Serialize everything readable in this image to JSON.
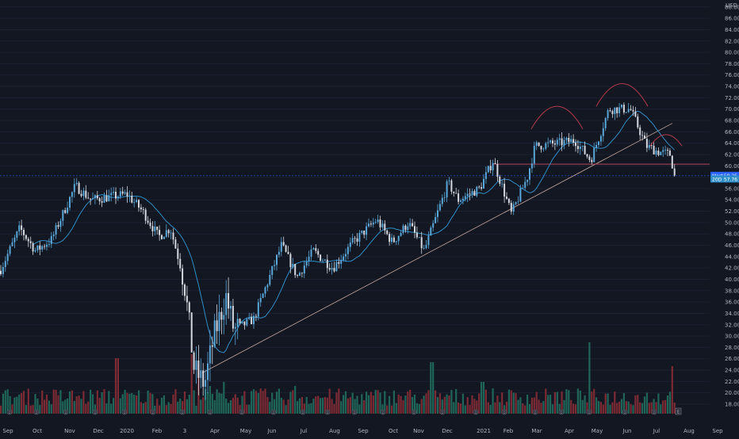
{
  "chart_data": {
    "type": "candlestick",
    "currency": "USD",
    "ylim": [
      16,
      89
    ],
    "y_ticks": [
      18,
      20,
      22,
      24,
      26,
      28,
      30,
      32,
      34,
      36,
      38,
      40,
      42,
      44,
      46,
      48,
      50,
      52,
      54,
      56,
      58,
      60,
      62,
      64,
      66,
      68,
      70,
      72,
      74,
      76,
      78,
      80,
      82,
      84,
      86,
      88
    ],
    "x_tick_labels": [
      "Sep",
      "Oct",
      "Nov",
      "Dec",
      "2020",
      "Feb",
      "3",
      "Apr",
      "May",
      "Jun",
      "Jul",
      "Aug",
      "Sep",
      "Oct",
      "Nov",
      "Dec",
      "2021",
      "Feb",
      "Mar",
      "Apr",
      "May",
      "Jun",
      "Jul",
      "Aug",
      "Sep"
    ],
    "price_path_anchors": [
      [
        0,
        41.5
      ],
      [
        25,
        49
      ],
      [
        45,
        45
      ],
      [
        65,
        47
      ],
      [
        95,
        56.5
      ],
      [
        115,
        54
      ],
      [
        160,
        55
      ],
      [
        180,
        52
      ],
      [
        200,
        47.5
      ],
      [
        215,
        49
      ],
      [
        232,
        40
      ],
      [
        245,
        24
      ],
      [
        258,
        21.5
      ],
      [
        270,
        30
      ],
      [
        285,
        37
      ],
      [
        295,
        31
      ],
      [
        320,
        33
      ],
      [
        355,
        46
      ],
      [
        375,
        40.5
      ],
      [
        395,
        45
      ],
      [
        420,
        42
      ],
      [
        445,
        46.5
      ],
      [
        475,
        50.5
      ],
      [
        495,
        46.5
      ],
      [
        515,
        50
      ],
      [
        535,
        45
      ],
      [
        565,
        57
      ],
      [
        578,
        54
      ],
      [
        605,
        56
      ],
      [
        622,
        61
      ],
      [
        645,
        51.5
      ],
      [
        665,
        58
      ],
      [
        675,
        63.5
      ],
      [
        705,
        64
      ],
      [
        725,
        64.5
      ],
      [
        745,
        61
      ],
      [
        768,
        70
      ],
      [
        795,
        70
      ],
      [
        815,
        63.5
      ],
      [
        830,
        62.5
      ],
      [
        845,
        62
      ],
      [
        851,
        58.3
      ]
    ],
    "moving_average": {
      "label": "20D",
      "value": 57.76,
      "color": "#2e8ec9"
    },
    "last_price": {
      "label": "Mert",
      "value": 58.25,
      "color": "#2962ff"
    },
    "horizontal_line": {
      "value": 60.3,
      "color": "#b2455a"
    },
    "support_line": {
      "from": [
        255,
        23.5
      ],
      "to": [
        848,
        67.5
      ],
      "color": "#c9a99e"
    },
    "arcs": [
      {
        "from_x": 670,
        "to_x": 735,
        "base": 66.5,
        "peak": 70.5
      },
      {
        "from_x": 752,
        "to_x": 817,
        "base": 70.5,
        "peak": 74.5
      },
      {
        "from_x": 820,
        "to_x": 860,
        "base": 63.5,
        "peak": 65.5
      }
    ],
    "volume_spikes": [
      [
        242,
        75
      ],
      [
        250,
        62
      ],
      [
        265,
        35
      ],
      [
        283,
        40
      ],
      [
        148,
        70
      ],
      [
        372,
        35
      ],
      [
        545,
        65
      ],
      [
        608,
        40
      ],
      [
        744,
        90
      ],
      [
        848,
        60
      ]
    ],
    "earnings_marker": "E",
    "event_marker": "D",
    "colors": {
      "up": "#5aa7d9",
      "down": "#d5d8df",
      "vol_up": "#1f6658",
      "vol_down": "#7c2b34",
      "background": "#131722"
    }
  }
}
